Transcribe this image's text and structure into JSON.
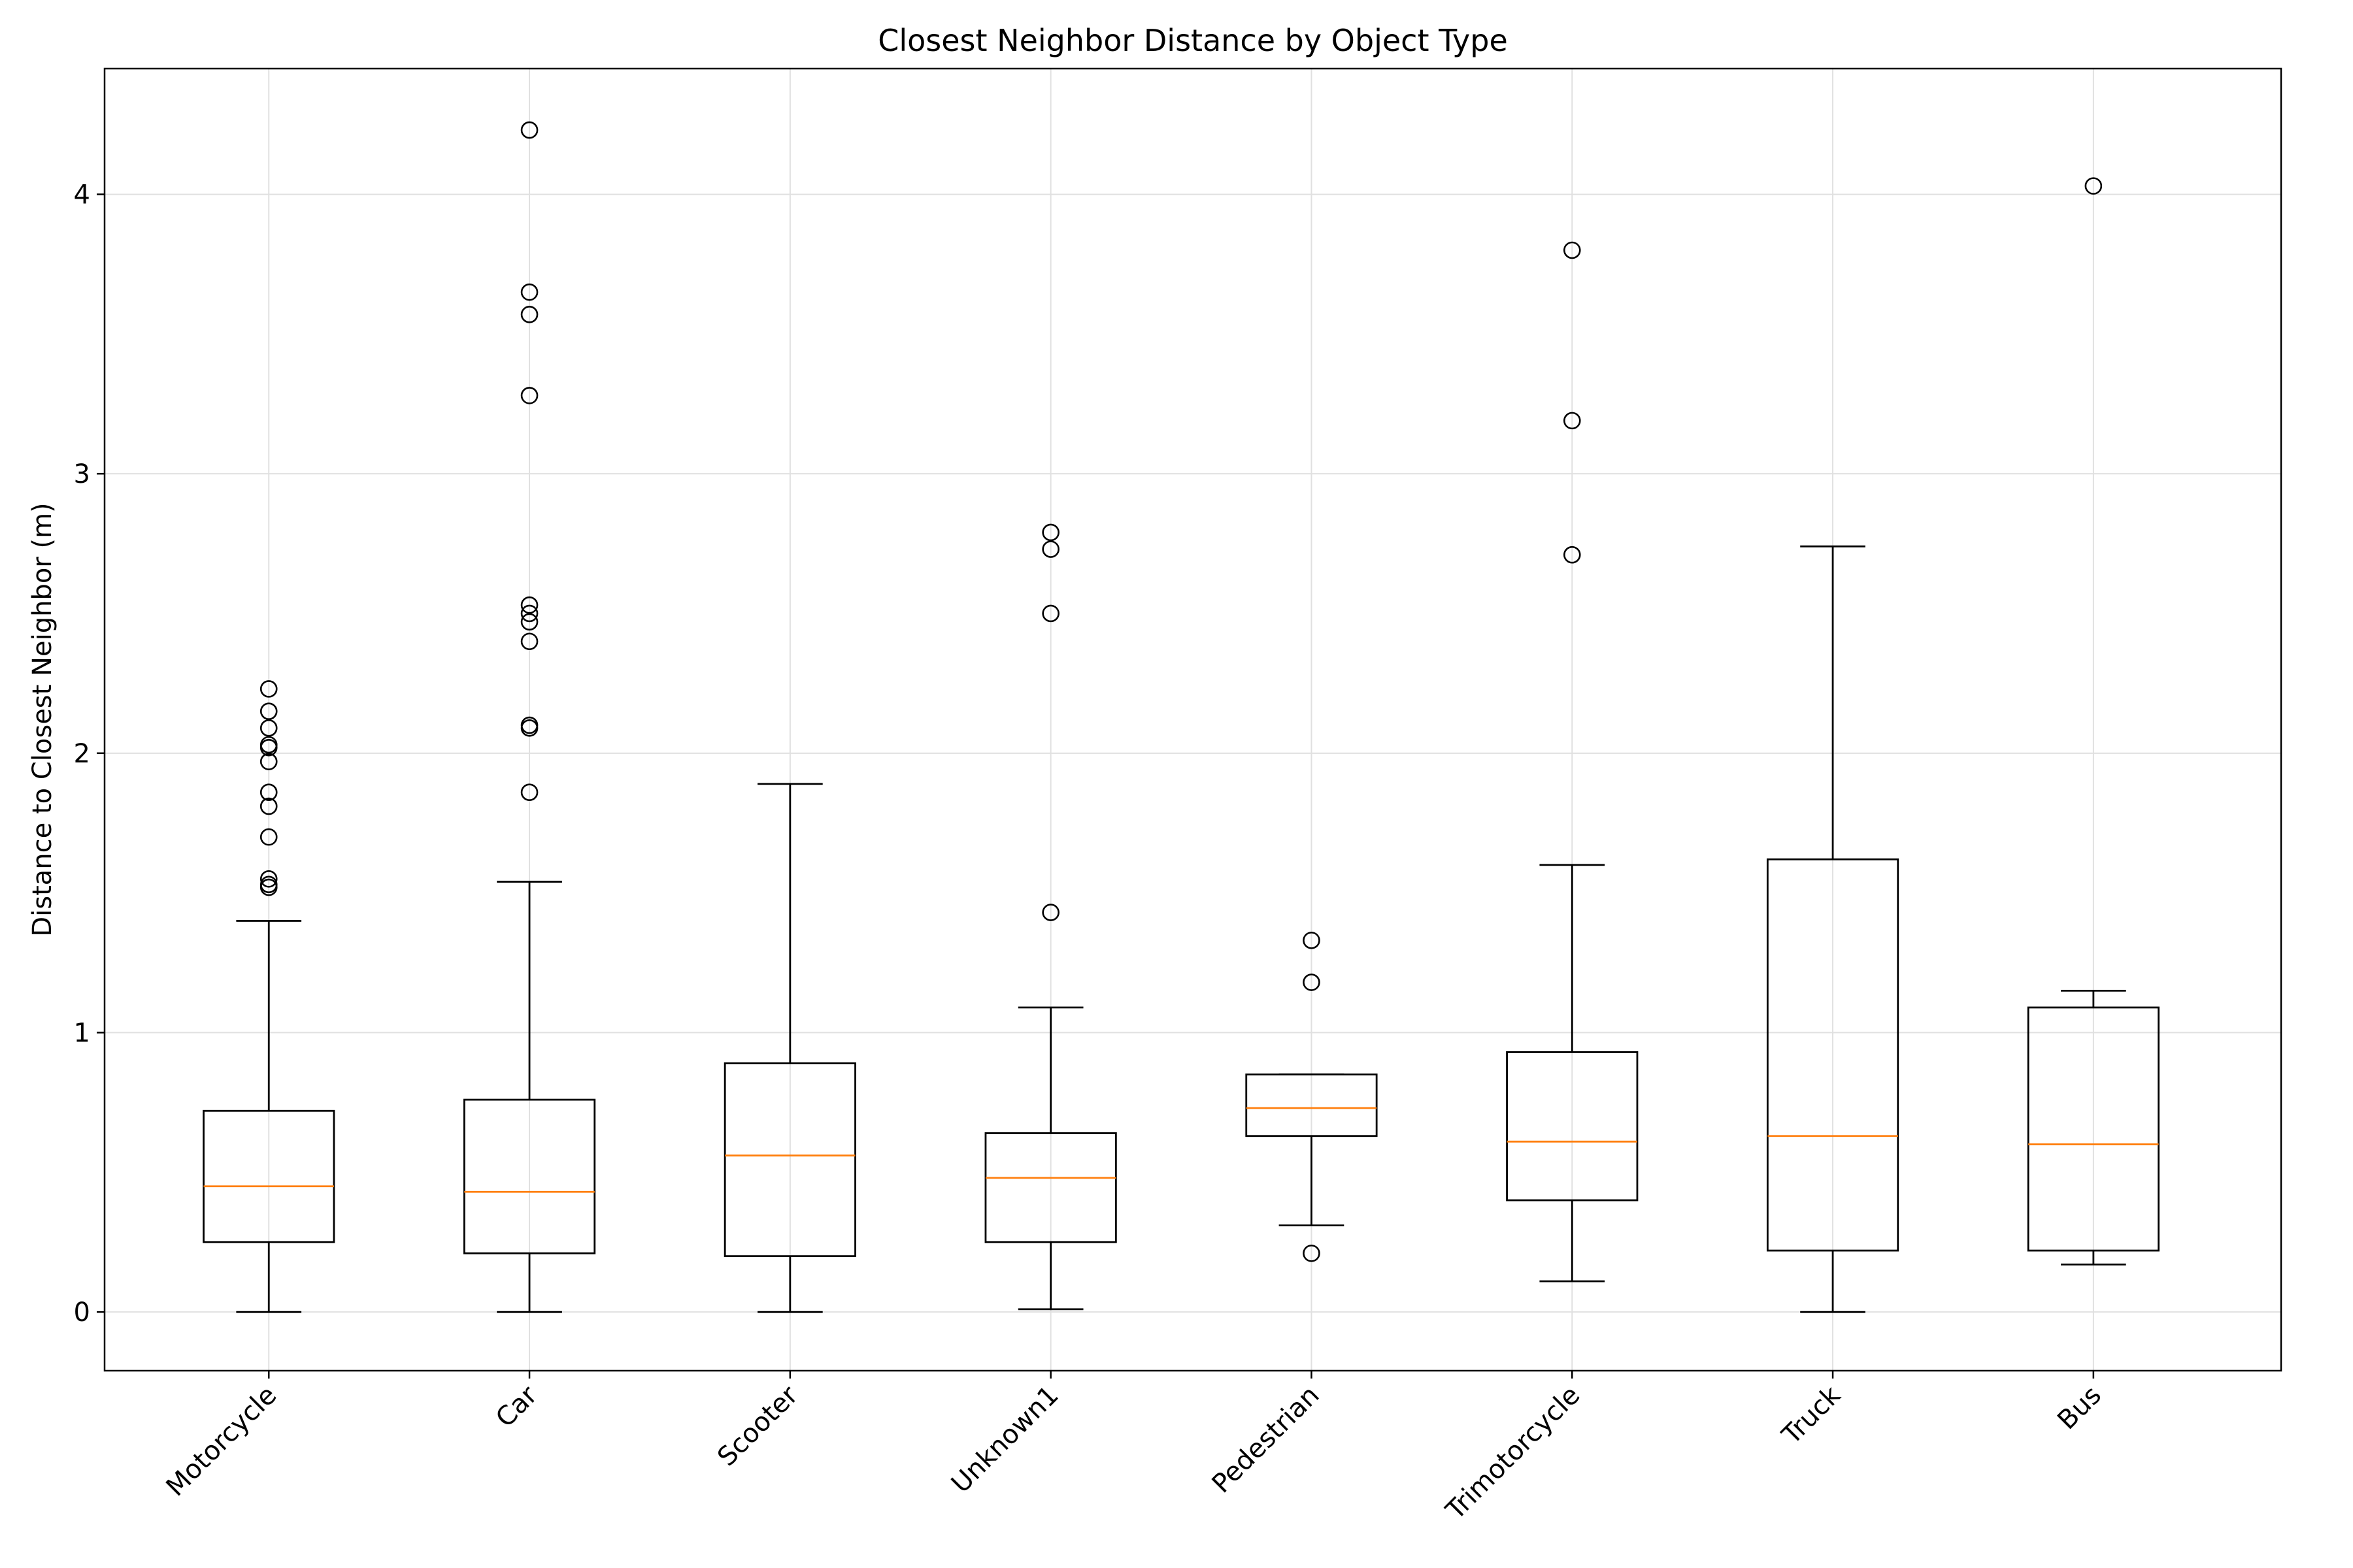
{
  "chart_data": {
    "type": "boxplot",
    "title": "Closest Neighbor Distance by Object Type",
    "xlabel": "",
    "ylabel": "Distance to Closest Neighbor (m)",
    "ylim": [
      -0.21,
      4.45
    ],
    "yticks": [
      0,
      1,
      2,
      3,
      4
    ],
    "grid": true,
    "colors": {
      "box": "#000000",
      "median": "#ff7f0e",
      "grid": "#e0e0e0"
    },
    "categories": [
      "Motorcycle",
      "Car",
      "Scooter",
      "Unknown1",
      "Pedestrian",
      "Trimotorcycle",
      "Truck",
      "Bus"
    ],
    "boxes": [
      {
        "name": "Motorcycle",
        "whisker_low": 0.0,
        "q1": 0.25,
        "median": 0.45,
        "q3": 0.72,
        "whisker_high": 1.4,
        "outliers": [
          1.52,
          1.53,
          1.55,
          1.7,
          1.81,
          1.86,
          1.97,
          2.02,
          2.03,
          2.09,
          2.15,
          2.23
        ]
      },
      {
        "name": "Car",
        "whisker_low": 0.0,
        "q1": 0.21,
        "median": 0.43,
        "q3": 0.76,
        "whisker_high": 1.54,
        "outliers": [
          1.86,
          2.09,
          2.1,
          2.4,
          2.47,
          2.5,
          2.53,
          3.28,
          3.57,
          3.65,
          4.23
        ]
      },
      {
        "name": "Scooter",
        "whisker_low": 0.0,
        "q1": 0.2,
        "median": 0.56,
        "q3": 0.89,
        "whisker_high": 1.89,
        "outliers": []
      },
      {
        "name": "Unknown1",
        "whisker_low": 0.01,
        "q1": 0.25,
        "median": 0.48,
        "q3": 0.64,
        "whisker_high": 1.09,
        "outliers": [
          1.43,
          2.5,
          2.73,
          2.79
        ]
      },
      {
        "name": "Pedestrian",
        "whisker_low": 0.31,
        "q1": 0.63,
        "median": 0.73,
        "q3": 0.85,
        "whisker_high": 0.85,
        "outliers": [
          0.21,
          1.18,
          1.33
        ]
      },
      {
        "name": "Trimotorcycle",
        "whisker_low": 0.11,
        "q1": 0.4,
        "median": 0.61,
        "q3": 0.93,
        "whisker_high": 1.6,
        "outliers": [
          2.71,
          3.19,
          3.8
        ]
      },
      {
        "name": "Truck",
        "whisker_low": 0.0,
        "q1": 0.22,
        "median": 0.63,
        "q3": 1.62,
        "whisker_high": 2.74,
        "outliers": []
      },
      {
        "name": "Bus",
        "whisker_low": 0.17,
        "q1": 0.22,
        "median": 0.6,
        "q3": 1.09,
        "whisker_high": 1.15,
        "outliers": [
          4.03
        ]
      }
    ]
  }
}
